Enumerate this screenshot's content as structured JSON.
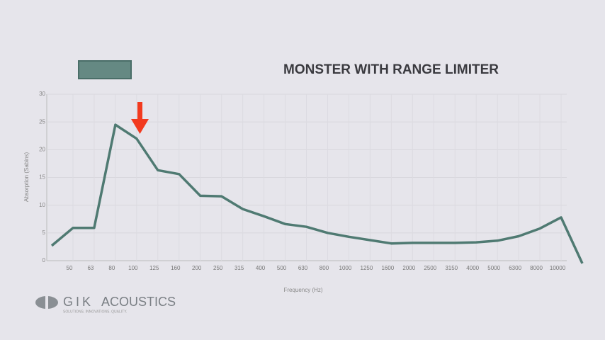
{
  "chart_data": {
    "type": "line",
    "y_label": "Absorption (Sabins)",
    "x_label": "Frequency (Hz)",
    "categories": [
      null,
      "50",
      "63",
      "80",
      "100",
      "125",
      "160",
      "200",
      "250",
      "315",
      "400",
      "500",
      "630",
      "800",
      "1000",
      "1250",
      "1600",
      "2000",
      "2500",
      "3150",
      "4000",
      "5000",
      "6300",
      "8000",
      "10000",
      null
    ],
    "series": [
      {
        "name": "MONSTER WITH RANGE LIMITER",
        "color": "#4f7a72",
        "values": [
          2.7,
          5.9,
          5.9,
          24.5,
          22.0,
          16.3,
          15.6,
          11.7,
          11.6,
          9.3,
          8.0,
          6.6,
          6.1,
          5.0,
          4.3,
          3.7,
          3.1,
          3.2,
          3.2,
          3.2,
          3.3,
          3.6,
          4.4,
          5.8,
          7.8,
          -0.5
        ]
      }
    ],
    "ylim": [
      0,
      30
    ],
    "yticks": [
      0,
      5,
      10,
      15,
      20,
      25,
      30
    ],
    "grid": true
  },
  "logo": {
    "name": "GIK",
    "word": "ACOUSTICS",
    "tagline": "SOLUTIONS. INNOVATIONS. QUALITY."
  }
}
